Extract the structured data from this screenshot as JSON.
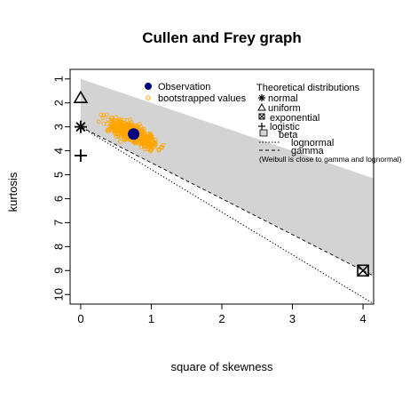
{
  "chart_data": {
    "type": "scatter",
    "title": "Cullen and Frey graph",
    "xlabel": "square of skewness",
    "ylabel": "kurtosis",
    "xlim": [
      -0.15,
      4.15
    ],
    "ylim": [
      10.4,
      0.6
    ],
    "x_ticks": [
      "0",
      "1",
      "2",
      "3",
      "4"
    ],
    "x_tick_values": [
      0,
      1,
      2,
      3,
      4
    ],
    "y_ticks": [
      "1",
      "2",
      "3",
      "4",
      "5",
      "6",
      "7",
      "8",
      "9",
      "10"
    ],
    "y_tick_values": [
      1,
      2,
      3,
      4,
      5,
      6,
      7,
      8,
      9,
      10
    ],
    "observation": {
      "x": 0.75,
      "y": 3.3,
      "color": "#000080"
    },
    "bootstrap": {
      "color": "#FFA500",
      "count": 500,
      "center_x": 0.75,
      "center_y": 3.3
    },
    "beta_region_color": "#D3D3D3",
    "distributions": {
      "normal": {
        "x": 0,
        "y": 3
      },
      "uniform": {
        "x": 0,
        "y": 1.8
      },
      "exponential": {
        "x": 4,
        "y": 9
      },
      "logistic": {
        "x": 0,
        "y": 4.2
      }
    },
    "legend_left": {
      "position": "top",
      "entries": [
        "Observation",
        "bootstrapped values"
      ]
    },
    "legend_right": {
      "position": "top-right",
      "title": "Theoretical distributions",
      "entries": [
        "normal",
        "uniform",
        "exponential",
        "logistic",
        "beta",
        "lognormal",
        "gamma"
      ],
      "note": "(Weibull is close to gamma and lognormal)"
    }
  }
}
